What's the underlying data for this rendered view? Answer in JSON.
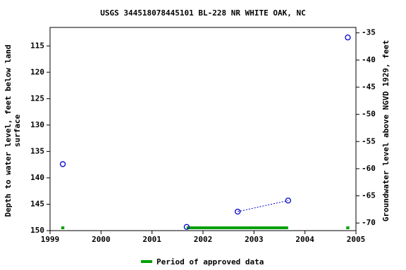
{
  "chart_data": {
    "type": "scatter",
    "title": "USGS 344518078445101 BL-228 NR WHITE OAK, NC",
    "ylabel": [
      "Depth to water level, feet below land",
      "surface"
    ],
    "y2label": "Groundwater level above NGVD 1929, feet",
    "x": [
      1999.25,
      2001.68,
      2002.68,
      2003.67,
      2004.84
    ],
    "series": [
      {
        "name": "Depth to water level",
        "color": "#0000cc",
        "values": [
          137.4,
          149.3,
          146.4,
          144.3,
          113.4
        ]
      }
    ],
    "xlim": [
      1999,
      2005
    ],
    "xticks": [
      1999,
      2000,
      2001,
      2002,
      2003,
      2004,
      2005
    ],
    "ylim": [
      150,
      111.5
    ],
    "yticks": [
      115,
      120,
      125,
      130,
      135,
      140,
      145,
      150
    ],
    "y2lim": [
      -71.4,
      -34
    ],
    "y2ticks": [
      -35,
      -40,
      -45,
      -50,
      -55,
      -60,
      -65,
      -70
    ],
    "approved": {
      "name": "Period of approved data",
      "color": "#00a000",
      "periods": [
        [
          1999.22,
          1999.28
        ],
        [
          2001.68,
          2003.67
        ],
        [
          2004.81,
          2004.87
        ]
      ]
    }
  }
}
